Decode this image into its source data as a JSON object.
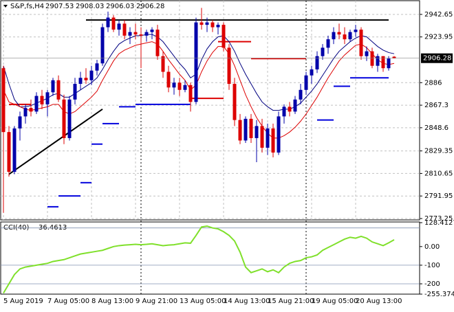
{
  "chart_data": [
    {
      "type": "candlestick",
      "title": "S&P,fs,H4",
      "categories": [
        "5 Aug 2019",
        null,
        null,
        null,
        null,
        null,
        null,
        null,
        "7 Aug 05:00",
        null,
        null,
        null,
        null,
        null,
        null,
        null,
        "8 Aug 13:00",
        null,
        null,
        null,
        null,
        null,
        null,
        null,
        "9 Aug 21:00",
        null,
        null,
        null,
        null,
        null,
        null,
        null,
        "13 Aug 05:00",
        null,
        null,
        null,
        null,
        null,
        null,
        null,
        "14 Aug 13:00",
        null,
        null,
        null,
        null,
        null,
        null,
        null,
        "15 Aug 21:00",
        null,
        null,
        null,
        null,
        null,
        null,
        null,
        "19 Aug 05:00",
        null,
        null,
        null,
        null,
        null,
        null,
        null,
        "20 Aug 13:00",
        null,
        null,
        null,
        null,
        null,
        null,
        null
      ],
      "open": [
        2898,
        2845,
        2812,
        2848,
        2858,
        2865,
        2862,
        2875,
        2868,
        2878,
        2888,
        2872,
        2840,
        2872,
        2885,
        2890,
        2888,
        2896,
        2902,
        2932,
        2940,
        2930,
        2935,
        2925,
        2928,
        2926,
        2925,
        2928,
        2930,
        2908,
        2895,
        2882,
        2886,
        2880,
        2884,
        2870,
        2936,
        2934,
        2936,
        2932,
        2934,
        2915,
        2885,
        2855,
        2838,
        2856,
        2840,
        2850,
        2832,
        2848,
        2828,
        2858,
        2866,
        2862,
        2872,
        2880,
        2892,
        2897,
        2908,
        2915,
        2922,
        2928,
        2926,
        2922,
        2928,
        2930,
        2908,
        2912,
        2900,
        2908,
        2898,
        2907.53
      ],
      "high": [
        2900,
        2850,
        2850,
        2862,
        2868,
        2872,
        2878,
        2880,
        2880,
        2890,
        2892,
        2876,
        2875,
        2890,
        2895,
        2898,
        2900,
        2905,
        2935,
        2945,
        2942,
        2938,
        2938,
        2932,
        2935,
        2932,
        2930,
        2932,
        2934,
        2912,
        2900,
        2890,
        2890,
        2888,
        2886,
        2940,
        2948,
        2940,
        2938,
        2936,
        2936,
        2918,
        2890,
        2860,
        2858,
        2860,
        2855,
        2856,
        2852,
        2852,
        2862,
        2868,
        2870,
        2875,
        2885,
        2895,
        2900,
        2912,
        2918,
        2925,
        2932,
        2935,
        2932,
        2930,
        2934,
        2932,
        2916,
        2915,
        2910,
        2908,
        2908,
        2908.03
      ],
      "low": [
        2778,
        2808,
        2810,
        2838,
        2852,
        2858,
        2860,
        2864,
        2858,
        2875,
        2870,
        2835,
        2838,
        2868,
        2880,
        2885,
        2884,
        2892,
        2900,
        2928,
        2928,
        2925,
        2922,
        2918,
        2922,
        2898,
        2920,
        2922,
        2905,
        2890,
        2878,
        2876,
        2875,
        2878,
        2862,
        2868,
        2930,
        2928,
        2928,
        2926,
        2912,
        2880,
        2850,
        2835,
        2836,
        2836,
        2820,
        2828,
        2826,
        2824,
        2826,
        2852,
        2858,
        2860,
        2868,
        2876,
        2885,
        2894,
        2905,
        2910,
        2918,
        2922,
        2918,
        2920,
        2924,
        2905,
        2904,
        2898,
        2895,
        2895,
        2896,
        2906.03
      ],
      "close": [
        2845,
        2812,
        2848,
        2858,
        2865,
        2862,
        2875,
        2868,
        2878,
        2888,
        2872,
        2840,
        2872,
        2885,
        2890,
        2888,
        2896,
        2902,
        2932,
        2940,
        2930,
        2935,
        2925,
        2928,
        2926,
        2925,
        2928,
        2930,
        2908,
        2895,
        2882,
        2886,
        2880,
        2884,
        2870,
        2936,
        2934,
        2936,
        2932,
        2934,
        2915,
        2885,
        2855,
        2838,
        2856,
        2840,
        2850,
        2832,
        2848,
        2828,
        2858,
        2866,
        2862,
        2872,
        2880,
        2892,
        2897,
        2908,
        2915,
        2922,
        2928,
        2926,
        2922,
        2928,
        2930,
        2908,
        2912,
        2900,
        2908,
        2898,
        2906,
        2906.28
      ],
      "overlays": [
        {
          "color": "#000080",
          "values": [
            2900,
            2885,
            2872,
            2866,
            2866,
            2867,
            2869,
            2871,
            2873,
            2876,
            2877,
            2874,
            2874,
            2877,
            2880,
            2883,
            2886,
            2890,
            2897,
            2905,
            2912,
            2918,
            2921,
            2923,
            2925,
            2925,
            2926,
            2926,
            2924,
            2920,
            2914,
            2908,
            2902,
            2897,
            2890,
            2893,
            2905,
            2914,
            2920,
            2924,
            2925,
            2920,
            2912,
            2902,
            2893,
            2885,
            2877,
            2870,
            2866,
            2863,
            2863,
            2864,
            2864,
            2866,
            2869,
            2874,
            2879,
            2885,
            2892,
            2899,
            2906,
            2912,
            2916,
            2920,
            2923,
            2925,
            2924,
            2920,
            2916,
            2913,
            2911,
            2910
          ]
        },
        {
          "color": "#dd0000",
          "values": [
            2880,
            2870,
            2868,
            2866,
            2864,
            2863,
            2864,
            2865,
            2866,
            2868,
            2868,
            2862,
            2860,
            2862,
            2866,
            2870,
            2874,
            2879,
            2888,
            2896,
            2904,
            2910,
            2913,
            2915,
            2917,
            2918,
            2919,
            2920,
            2918,
            2912,
            2905,
            2899,
            2893,
            2888,
            2880,
            2884,
            2895,
            2904,
            2911,
            2916,
            2916,
            2910,
            2900,
            2888,
            2876,
            2866,
            2857,
            2850,
            2844,
            2840,
            2840,
            2842,
            2845,
            2849,
            2854,
            2860,
            2867,
            2874,
            2882,
            2890,
            2897,
            2904,
            2909,
            2913,
            2917,
            2918,
            2915,
            2910,
            2905,
            2902,
            2901,
            2902
          ]
        }
      ],
      "steps": [
        {
          "from": 1,
          "to": 5,
          "value": 2868,
          "color": "#dd0000"
        },
        {
          "from": 8,
          "to": 10,
          "value": 2783,
          "color": "#0000dd"
        },
        {
          "from": 10,
          "to": 14,
          "value": 2792,
          "color": "#0000dd"
        },
        {
          "from": 14,
          "to": 16,
          "value": 2803,
          "color": "#0000dd"
        },
        {
          "from": 16,
          "to": 18,
          "value": 2835,
          "color": "#0000dd"
        },
        {
          "from": 18,
          "to": 21,
          "value": 2852,
          "color": "#0000dd"
        },
        {
          "from": 21,
          "to": 24,
          "value": 2866,
          "color": "#0000dd"
        },
        {
          "from": 24,
          "to": 34,
          "value": 2868,
          "color": "#0000dd"
        },
        {
          "from": 34,
          "to": 40,
          "value": 2873,
          "color": "#dd0000"
        },
        {
          "from": 39,
          "to": 45,
          "value": 2920,
          "color": "#dd0000"
        },
        {
          "from": 45,
          "to": 55,
          "value": 2906,
          "color": "#dd0000"
        },
        {
          "from": 57,
          "to": 60,
          "value": 2855,
          "color": "#0000dd"
        },
        {
          "from": 60,
          "to": 63,
          "value": 2883,
          "color": "#0000dd"
        },
        {
          "from": 63,
          "to": 70,
          "value": 2890,
          "color": "#0000dd"
        }
      ],
      "trendlines": [
        {
          "x": [
            15,
            70
          ],
          "values": [
            2938,
            2938
          ],
          "color": "#000000"
        },
        {
          "x": [
            1,
            18
          ],
          "values": [
            2810,
            2864
          ],
          "color": "#000000"
        }
      ],
      "ylim": [
        2772.1,
        2954.02
      ],
      "yticks": [
        2942.65,
        2923.95,
        2886.0,
        2867.3,
        2848.6,
        2829.35,
        2810.65,
        2791.95,
        2773.25
      ],
      "grid": true
    },
    {
      "type": "line",
      "title": "CCI(40)",
      "color": "#7fe02a",
      "values": [
        -250,
        -200,
        -150,
        -120,
        -110,
        -105,
        -100,
        -95,
        -90,
        -80,
        -75,
        -70,
        -60,
        -50,
        -40,
        -35,
        -30,
        -25,
        -20,
        -10,
        0,
        5,
        8,
        10,
        12,
        10,
        12,
        15,
        10,
        5,
        8,
        10,
        15,
        20,
        18,
        60,
        105,
        110,
        100,
        95,
        80,
        60,
        30,
        -30,
        -110,
        -140,
        -130,
        -120,
        -135,
        -125,
        -140,
        -110,
        -90,
        -80,
        -75,
        -60,
        -55,
        -45,
        -20,
        -5,
        10,
        25,
        40,
        50,
        45,
        55,
        45,
        25,
        15,
        5,
        20,
        36.4613
      ],
      "ylim": [
        -255.3744,
        128.4127
      ],
      "yticks": [
        128.4127,
        {
          "value": 0,
          "label": "0.00"
        },
        -100,
        -200,
        -255.3744
      ],
      "levels": [
        100,
        -100,
        -200
      ]
    }
  ]
}
